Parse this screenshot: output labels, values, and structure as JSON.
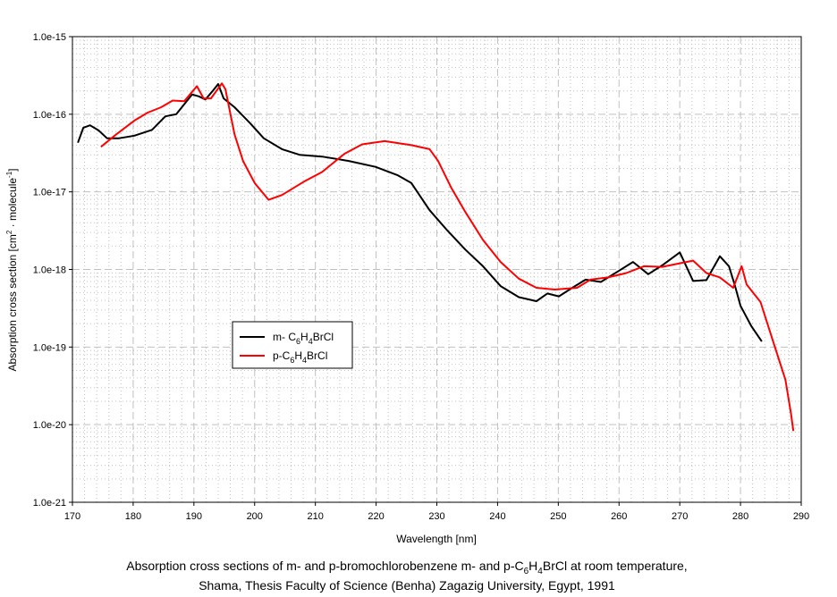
{
  "chart_data": {
    "type": "line",
    "x_scale": "linear",
    "y_scale": "log",
    "xlabel": "Wavelength [nm]",
    "ylabel": {
      "pre": "Absorption cross section [cm",
      "sup1": "2",
      "mid": " · molecule",
      "sup2": "-1",
      "post": "]"
    },
    "xlim": [
      170,
      290
    ],
    "ylim": [
      1e-21,
      1e-15
    ],
    "x_ticks": [
      "170",
      "180",
      "190",
      "200",
      "210",
      "220",
      "230",
      "240",
      "250",
      "260",
      "270",
      "280",
      "290"
    ],
    "y_ticks": [
      "1.0e-21",
      "1.0e-20",
      "1.0e-19",
      "1.0e-18",
      "1.0e-17",
      "1.0e-16",
      "1.0e-15"
    ],
    "grid": true,
    "legend_position": "lower-left inside plot",
    "series": [
      {
        "name": "m- C6H4BrCl",
        "label_parts": {
          "a": "m- C",
          "s1": "6",
          "b": "H",
          "s2": "4",
          "c": "BrCl"
        },
        "color": "#000000",
        "x": [
          170.9,
          171.8,
          172.9,
          174.3,
          175.7,
          177.7,
          180.2,
          183.1,
          185.3,
          187.1,
          189.7,
          190.8,
          191.9,
          193.1,
          194.0,
          194.9,
          196.7,
          199.3,
          201.5,
          204.5,
          207.4,
          211.1,
          215.5,
          219.9,
          223.6,
          225.8,
          228.8,
          231.7,
          234.7,
          237.6,
          240.5,
          243.5,
          246.4,
          248.2,
          250.1,
          252.3,
          254.5,
          257.0,
          259.7,
          262.3,
          264.8,
          267.1,
          270.0,
          272.2,
          274.4,
          276.6,
          278.1,
          279.1,
          280.0,
          281.8,
          283.5
        ],
        "y": [
          4.3e-17,
          6.7e-17,
          7.2e-17,
          6.2e-17,
          4.9e-17,
          4.9e-17,
          5.3e-17,
          6.3e-17,
          9.4e-17,
          1e-16,
          1.8e-16,
          1.7e-16,
          1.55e-16,
          2e-16,
          2.45e-16,
          1.6e-16,
          1.23e-16,
          7.6e-17,
          4.9e-17,
          3.55e-17,
          3e-17,
          2.85e-17,
          2.5e-17,
          2.1e-17,
          1.63e-17,
          1.3e-17,
          5.8e-18,
          3.2e-18,
          1.8e-18,
          1.1e-18,
          6.1e-19,
          4.4e-19,
          3.9e-19,
          4.9e-19,
          4.5e-19,
          5.8e-19,
          7.4e-19,
          6.9e-19,
          9.3e-19,
          1.25e-18,
          8.7e-19,
          1.13e-18,
          1.66e-18,
          7.1e-19,
          7.3e-19,
          1.48e-18,
          1.1e-18,
          6.1e-19,
          3.4e-19,
          1.85e-19,
          1.18e-19
        ]
      },
      {
        "name": "p-C6H4BrCl",
        "label_parts": {
          "a": "p-C",
          "s1": "6",
          "b": "H",
          "s2": "4",
          "c": "BrCl"
        },
        "color": "#ff0000",
        "x": [
          174.7,
          177.2,
          180.2,
          182.4,
          184.6,
          186.5,
          188.4,
          190.5,
          191.6,
          192.8,
          194.6,
          195.2,
          196.7,
          198.1,
          200.0,
          202.3,
          204.5,
          208.1,
          211.1,
          214.8,
          217.7,
          221.4,
          225.8,
          228.8,
          230.2,
          232.4,
          234.7,
          237.6,
          240.5,
          243.5,
          246.4,
          249.4,
          253.1,
          255.3,
          258.2,
          261.2,
          264.1,
          267.1,
          270.0,
          272.2,
          274.4,
          276.6,
          278.8,
          280.2,
          281.0,
          283.3,
          285.5,
          287.4,
          288.3,
          288.7
        ],
        "y": [
          3.8e-17,
          5.5e-17,
          8.3e-17,
          1.05e-16,
          1.23e-16,
          1.5e-16,
          1.47e-16,
          2.3e-16,
          1.6e-16,
          1.6e-16,
          2.5e-16,
          2.1e-16,
          5.5e-17,
          2.5e-17,
          1.3e-17,
          7.9e-18,
          9.1e-18,
          1.35e-17,
          1.8e-17,
          3.1e-17,
          4.1e-17,
          4.5e-17,
          4e-17,
          3.55e-17,
          2.5e-17,
          1.12e-17,
          5.5e-18,
          2.4e-18,
          1.25e-18,
          7.6e-19,
          5.8e-19,
          5.5e-19,
          5.8e-19,
          7.4e-19,
          7.9e-19,
          9e-19,
          1.1e-18,
          1.08e-18,
          1.2e-18,
          1.3e-18,
          9e-19,
          7.9e-19,
          5.8e-19,
          1.1e-18,
          6.4e-19,
          3.8e-19,
          1.1e-19,
          3.8e-20,
          1.4e-20,
          8.3e-21
        ]
      }
    ]
  },
  "caption": {
    "line1": {
      "a": "Absorption cross sections of m- and p-bromochlorobenzene m- and p-C",
      "s1": "6",
      "b": "H",
      "s2": "4",
      "c": "BrCl at room temperature,"
    },
    "line2": "Shama, Thesis Faculty of Science (Benha) Zagazig University, Egypt, 1991"
  }
}
